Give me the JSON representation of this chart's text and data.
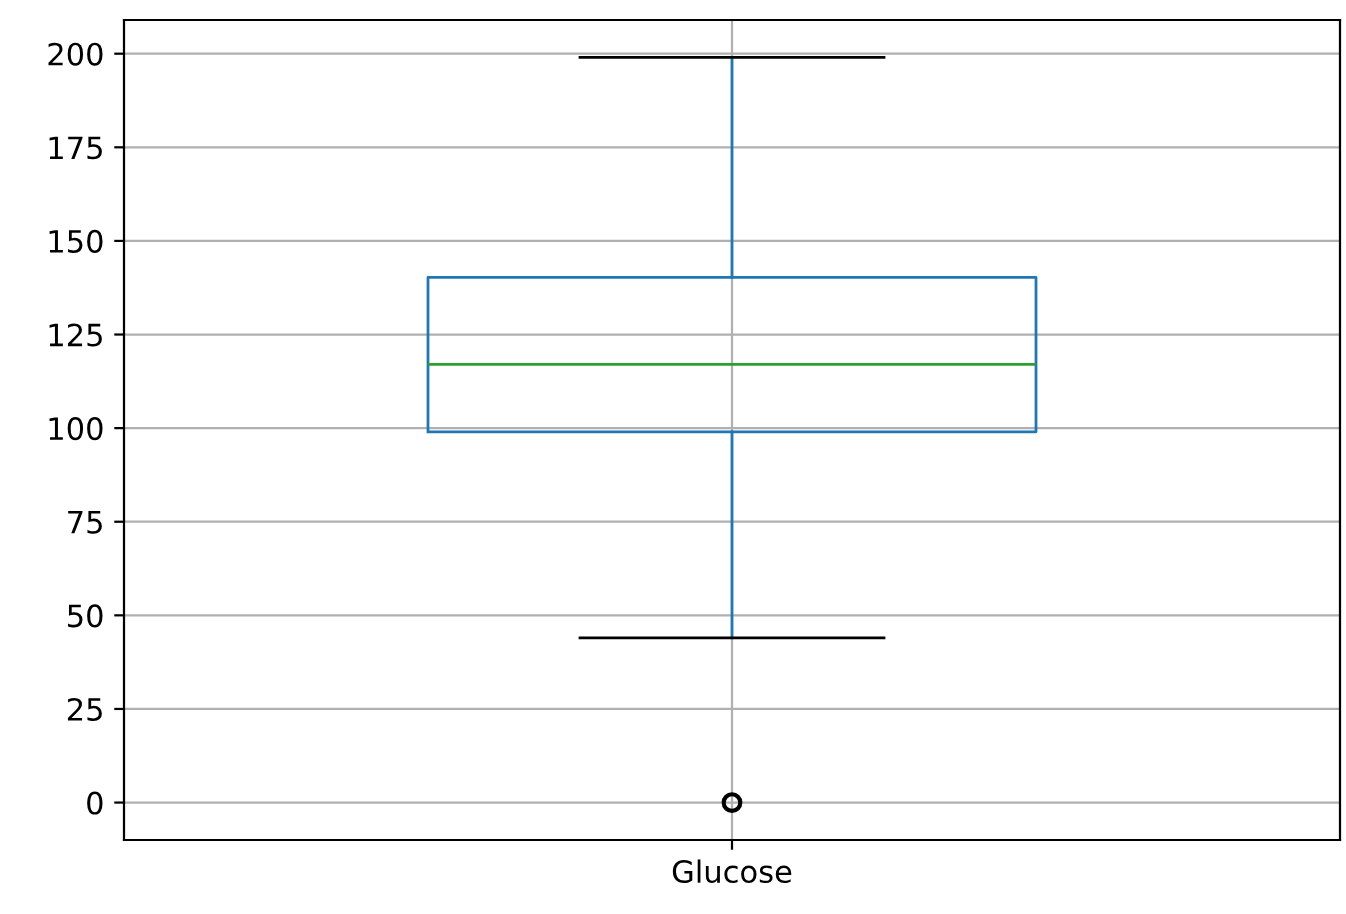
{
  "chart_data": {
    "type": "box",
    "categories": [
      "Glucose"
    ],
    "series": [
      {
        "color": "#1f77b4",
        "boxes": [
          {
            "low": 44,
            "q1": 99,
            "median": 117,
            "q3": 140.25,
            "high": 199,
            "outliers": [
              0
            ]
          }
        ]
      }
    ],
    "ylim": [
      -10,
      209
    ],
    "yticks": [
      0,
      25,
      50,
      75,
      100,
      125,
      150,
      175,
      200
    ],
    "grid": true
  }
}
